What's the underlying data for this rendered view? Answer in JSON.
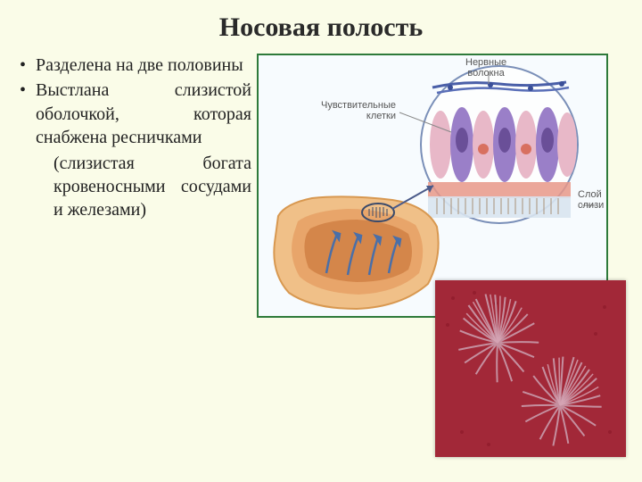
{
  "title": "Носовая полость",
  "bullets": [
    "Разделена на две половины",
    "Выстлана слизистой оболочкой, которая снабжена ресничками"
  ],
  "paren": "(слизистая богата кровеносными сосудами и железами)",
  "labels": {
    "nerve_fibers": "Нервные\nволокна",
    "sensory_cells": "Чувствительные\nклетки",
    "mucus_layer": "Слой\nслизи"
  },
  "colors": {
    "background": "#fafce8",
    "border": "#2e7a3a",
    "diagram_bg": "#f7fbfe",
    "nasal_tissue": "#e8a56a",
    "nasal_inner": "#d4864a",
    "cell_purple": "#8a6fb8",
    "cell_pink": "#e8b8c8",
    "cell_orange": "#e89070",
    "nerve_blue": "#4a5fa8",
    "mucus": "#d8e4f0",
    "micro_bg": "#9a2030",
    "micro_cilia": "#c898a8"
  }
}
